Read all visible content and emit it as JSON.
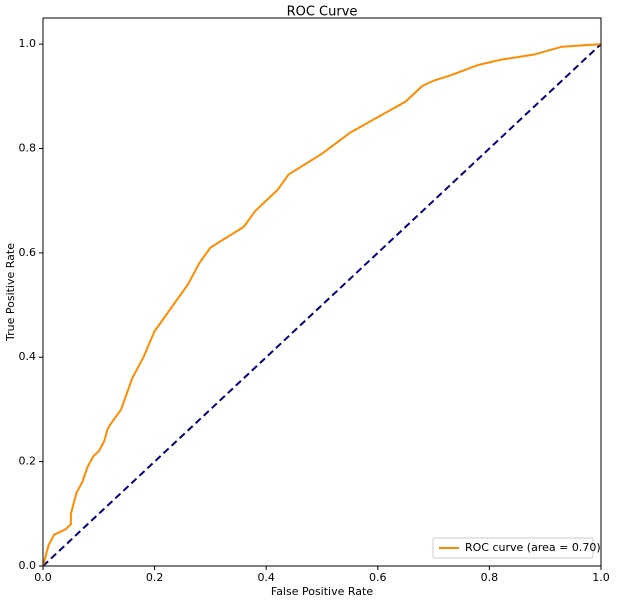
{
  "chart_data": {
    "type": "line",
    "title": "ROC Curve",
    "xlabel": "False Positive Rate",
    "ylabel": "True Positive Rate",
    "x": [
      0,
      0.005,
      0.01,
      0.02,
      0.04,
      0.05,
      0.05,
      0.06,
      0.07,
      0.08,
      0.09,
      0.1,
      0.11,
      0.115,
      0.12,
      0.14,
      0.15,
      0.16,
      0.18,
      0.2,
      0.22,
      0.24,
      0.26,
      0.28,
      0.3,
      0.33,
      0.36,
      0.38,
      0.4,
      0.42,
      0.44,
      0.47,
      0.5,
      0.55,
      0.6,
      0.65,
      0.68,
      0.7,
      0.73,
      0.78,
      0.82,
      0.88,
      0.93,
      1
    ],
    "series": [
      {
        "name": "ROC curve (area = 0.70)",
        "color": "#ff8c00",
        "values": [
          0,
          0.02,
          0.04,
          0.06,
          0.07,
          0.08,
          0.1,
          0.14,
          0.16,
          0.19,
          0.21,
          0.22,
          0.24,
          0.26,
          0.27,
          0.3,
          0.33,
          0.36,
          0.4,
          0.45,
          0.48,
          0.51,
          0.54,
          0.58,
          0.61,
          0.63,
          0.65,
          0.68,
          0.7,
          0.72,
          0.75,
          0.77,
          0.79,
          0.83,
          0.86,
          0.89,
          0.92,
          0.93,
          0.94,
          0.96,
          0.97,
          0.98,
          0.995,
          1
        ]
      }
    ],
    "reference_line": {
      "x": [
        0,
        1
      ],
      "values": [
        0,
        1
      ],
      "color": "#000080",
      "dashed": true
    },
    "xlim": [
      0,
      1
    ],
    "ylim": [
      0,
      1.05
    ],
    "xticks": [
      {
        "value": 0,
        "label": "0.0"
      },
      0.2,
      0.4,
      0.6,
      0.8,
      {
        "value": 1,
        "label": "1.0"
      }
    ],
    "yticks": [
      {
        "value": 0,
        "label": "0.0"
      },
      0.2,
      0.4,
      0.6,
      0.8,
      {
        "value": 1,
        "label": "1.0"
      }
    ],
    "legend": "lower right"
  }
}
